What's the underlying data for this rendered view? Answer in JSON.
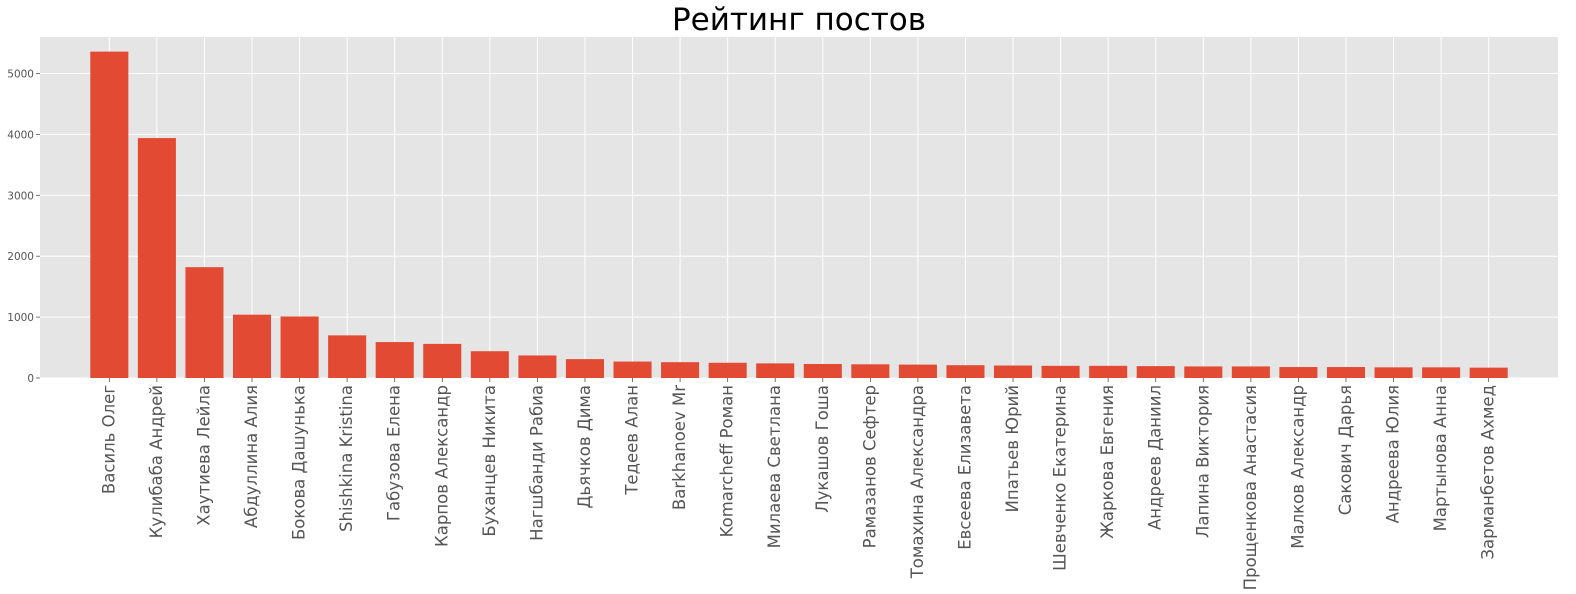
{
  "chart_data": {
    "type": "bar",
    "title": "Рейтинг постов",
    "xlabel": "",
    "ylabel": "",
    "ylim": [
      0,
      5600
    ],
    "yticks": [
      0,
      1000,
      2000,
      3000,
      4000,
      5000
    ],
    "grid": true,
    "bar_color": "#E24A33",
    "background_color": "#E5E5E5",
    "grid_color": "#FFFFFF",
    "categories": [
      "Василь Олег",
      "Кулибаба Андрей",
      "Хаутиева Лейла",
      "Абдуллина Алия",
      "Бокова Дашунька",
      "Shishkina Kristina",
      "Габузова Елена",
      "Карпов Александр",
      "Буханцев Никита",
      "Нагшбанди Рабиа",
      "Дьячков Дима",
      "Тедеев Алан",
      "Barkhanoev Mr",
      "Komarcheff Роман",
      "Милаева Светлана",
      "Лукашов Гоша",
      "Рамазанов Сефтер",
      "Томахина Александра",
      "Евсеева Елизавета",
      "Ипатьев Юрий",
      "Шевченко Екатерина",
      "Жаркова Евгения",
      "Андреев Даниил",
      "Лапина Виктория",
      "Прощенкова Анастасия",
      "Малков Александр",
      "Сакович Дарья",
      "Андреева Юлия",
      "Мартынова Анна",
      "Зарманбетов Ахмед"
    ],
    "values": [
      5360,
      3940,
      1820,
      1040,
      1010,
      700,
      590,
      560,
      440,
      370,
      310,
      270,
      260,
      250,
      240,
      230,
      225,
      220,
      210,
      205,
      200,
      200,
      195,
      190,
      190,
      180,
      180,
      175,
      175,
      170
    ]
  }
}
